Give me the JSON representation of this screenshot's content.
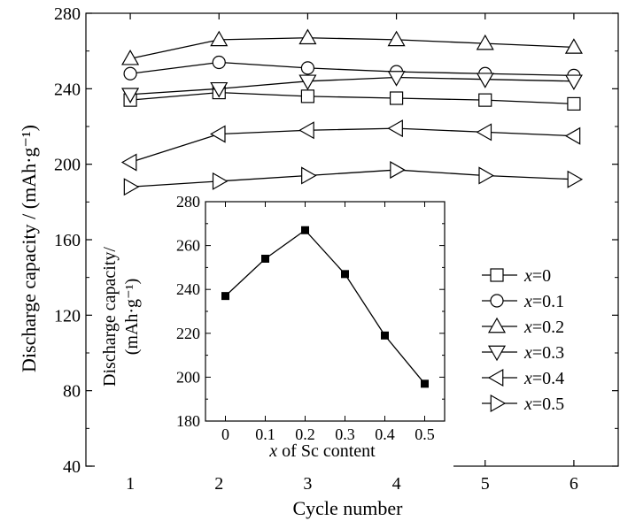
{
  "chart_data": [
    {
      "type": "line",
      "xlabel": "Cycle number",
      "ylabel": "Discharge capacity / (mAh·g⁻¹)",
      "x": [
        1,
        2,
        3,
        4,
        5,
        6
      ],
      "xlim": [
        0.5,
        6.5
      ],
      "ylim": [
        40,
        280
      ],
      "xticks": [
        1,
        2,
        3,
        4,
        5,
        6
      ],
      "yticks": [
        40,
        80,
        120,
        160,
        200,
        240,
        280
      ],
      "grid": false,
      "legend_position": "right",
      "series": [
        {
          "name": "x=0",
          "marker": "square",
          "values": [
            234,
            238,
            236,
            235,
            234,
            232
          ]
        },
        {
          "name": "x=0.1",
          "marker": "circle",
          "values": [
            248,
            254,
            251,
            249,
            248,
            247
          ]
        },
        {
          "name": "x=0.2",
          "marker": "triangle-up",
          "values": [
            256,
            266,
            267,
            266,
            264,
            262
          ]
        },
        {
          "name": "x=0.3",
          "marker": "triangle-down",
          "values": [
            237,
            240,
            244,
            246,
            245,
            244
          ]
        },
        {
          "name": "x=0.4",
          "marker": "triangle-left",
          "values": [
            201,
            216,
            218,
            219,
            217,
            215
          ]
        },
        {
          "name": "x=0.5",
          "marker": "triangle-right",
          "values": [
            188,
            191,
            194,
            197,
            194,
            192
          ]
        }
      ]
    },
    {
      "type": "line",
      "inset": true,
      "xlabel": "x of Sc content",
      "ylabel_line1": "Discharge capacity/",
      "ylabel_line2": "(mAh·g⁻¹)",
      "x": [
        0,
        0.1,
        0.2,
        0.3,
        0.4,
        0.5
      ],
      "values": [
        237,
        254,
        267,
        247,
        219,
        197
      ],
      "xlim": [
        -0.05,
        0.55
      ],
      "ylim": [
        180,
        280
      ],
      "xticks": [
        0,
        0.1,
        0.2,
        0.3,
        0.4,
        0.5
      ],
      "yticks": [
        180,
        190,
        200,
        210,
        220,
        230,
        240,
        250,
        260,
        270,
        280
      ],
      "yticklabels": [
        180,
        200,
        220,
        240,
        260,
        280
      ],
      "marker": "filled-square"
    }
  ]
}
